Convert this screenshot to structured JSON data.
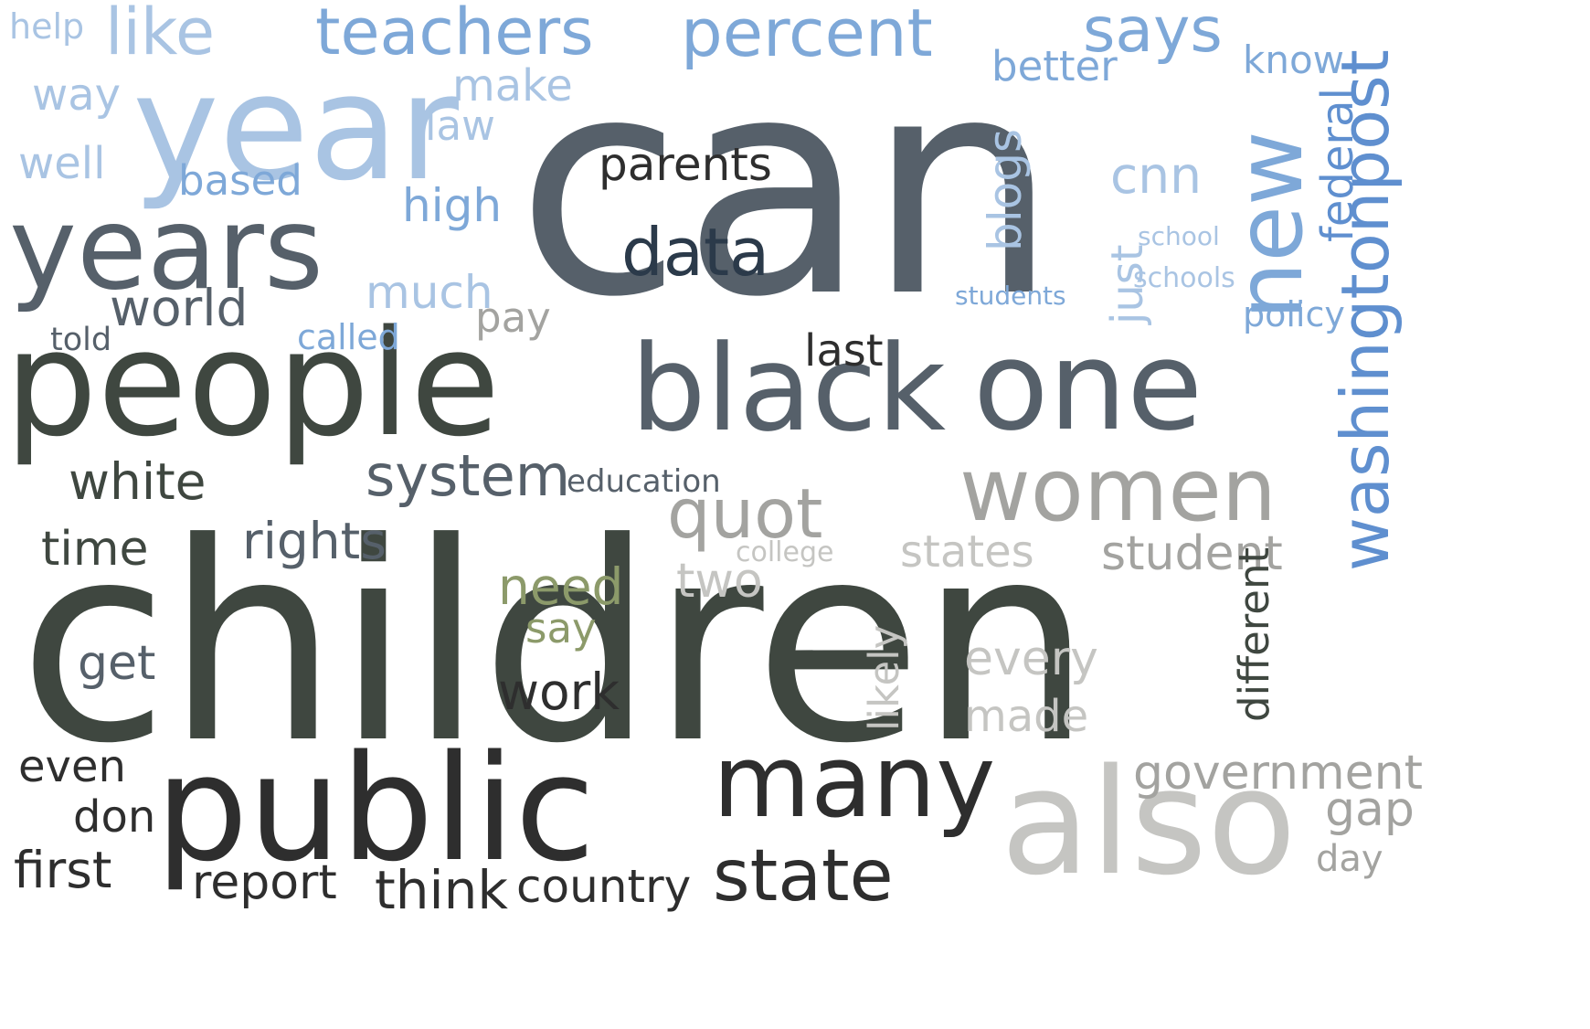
{
  "title": "",
  "palette": {
    "blue_light": "#a9c4e3",
    "blue": "#7ea8d8",
    "blue_mid": "#5f8fcf",
    "slate": "#56606a",
    "dark_green": "#3f4740",
    "olive": "#8c9a6a",
    "gray": "#a3a3a0",
    "light_gray": "#c5c5c2",
    "charcoal": "#2e2e2e",
    "navy": "#2b3a4a"
  },
  "words": [
    "can",
    "children",
    "year",
    "people",
    "years",
    "black",
    "one",
    "public",
    "also",
    "many",
    "women",
    "washingtonpost",
    "new",
    "teachers",
    "percent",
    "says",
    "like",
    "white",
    "state",
    "quot",
    "system",
    "data",
    "time",
    "rights",
    "government",
    "student",
    "states",
    "first",
    "report",
    "think",
    "country",
    "world",
    "work",
    "need",
    "say",
    "parents",
    "high",
    "much",
    "based",
    "make",
    "well",
    "way",
    "help",
    "last",
    "pay",
    "called",
    "told",
    "two",
    "get",
    "every",
    "made",
    "gap",
    "day",
    "even",
    "don",
    "like",
    "law",
    "better",
    "know",
    "blogs",
    "federal",
    "just",
    "cnn",
    "policy",
    "different",
    "likely",
    "college",
    "schools",
    "school",
    "education",
    "students"
  ]
}
